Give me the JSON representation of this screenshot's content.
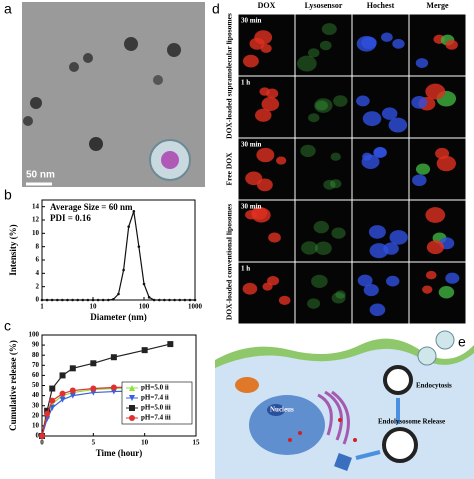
{
  "panel_labels": [
    "a",
    "b",
    "c",
    "d",
    "e"
  ],
  "tem": {
    "scale_bar": "50 nm"
  },
  "chart_data": [
    {
      "type": "line",
      "xscale": "log",
      "xlabel": "Diameter (nm)",
      "ylabel": "Intensity (%)",
      "annotations": [
        "Average Size = 60 nm",
        "PDI = 0.16"
      ],
      "x": [
        1,
        1.26,
        1.58,
        2,
        2.51,
        3.16,
        3.98,
        5.01,
        6.31,
        7.94,
        10,
        12.6,
        15.8,
        20,
        25.1,
        31.6,
        39.8,
        50.1,
        63.1,
        79.4,
        100,
        126,
        158,
        200,
        251,
        316,
        398,
        501,
        631,
        794,
        1000
      ],
      "values": [
        0,
        0,
        0,
        0,
        0,
        0,
        0,
        0,
        0,
        0,
        0,
        0,
        0,
        0,
        0.1,
        0.9,
        4.5,
        11,
        13.3,
        8,
        2.4,
        0.4,
        0,
        0,
        0,
        0,
        0,
        0,
        0,
        0,
        0
      ],
      "color": "#111111",
      "marker": "dot",
      "xlim": [
        1,
        1000
      ],
      "xticks": [
        1,
        10,
        100,
        1000
      ],
      "ylim": [
        0,
        15
      ],
      "yticks": [
        0,
        2,
        4,
        6,
        8,
        10,
        12,
        14
      ]
    },
    {
      "type": "line",
      "xlabel": "Time (hour)",
      "ylabel": "Cumulative release (%)",
      "x": [
        0,
        0.5,
        1,
        2,
        3,
        5,
        7,
        10,
        12.5
      ],
      "series": [
        {
          "name": "pH=5.0  ii",
          "color": "#8ee03a",
          "marker": "triangle-up",
          "values": [
            0,
            20,
            32,
            40,
            43,
            46,
            47,
            48,
            48
          ]
        },
        {
          "name": "pH=7.4  ii",
          "color": "#3a5fe0",
          "marker": "triangle-down",
          "values": [
            0,
            17,
            28,
            36,
            40,
            43,
            44,
            45,
            45
          ]
        },
        {
          "name": "pH=5.0  iii",
          "color": "#222222",
          "marker": "square",
          "values": [
            0,
            25,
            47,
            60,
            67,
            72,
            78,
            85,
            91
          ]
        },
        {
          "name": "pH=7.4  iii",
          "color": "#e03030",
          "marker": "circle",
          "values": [
            0,
            22,
            35,
            42,
            45,
            47,
            48,
            49,
            50
          ]
        }
      ],
      "legend": "lower right",
      "xlim": [
        0,
        15
      ],
      "xticks": [
        0,
        5,
        10,
        15
      ],
      "ylim": [
        0,
        100
      ],
      "yticks": [
        0,
        10,
        20,
        30,
        40,
        50,
        60,
        70,
        80,
        90,
        100
      ]
    }
  ],
  "micrographs": {
    "columns": [
      "DOX",
      "Lysosensor",
      "Hochest",
      "Merge"
    ],
    "rows": [
      "30 min",
      "1 h",
      "30 min",
      "30 min",
      "1 h"
    ],
    "groups": [
      "DOX-loaded supramolecular liposomes",
      "Free DOX",
      "DOX-loaded conventional liposomes"
    ]
  },
  "diagram": {
    "nucleus": "Nucleus",
    "endocytosis": "Endocytosis",
    "release": "Endolysosome Release"
  }
}
